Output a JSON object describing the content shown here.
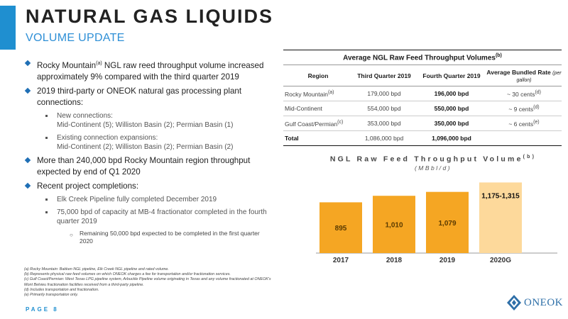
{
  "header": {
    "title": "NATURAL GAS LIQUIDS",
    "subtitle": "VOLUME UPDATE"
  },
  "bullets": {
    "rocky_a": "Rocky Mountain",
    "rocky_sup": "(a)",
    "rocky_b": " NGL raw reed throughput volume increased approximately 9% compared with the third quarter 2019",
    "third_party": "2019 third-party or ONEOK natural gas processing plant connections:",
    "new_connections_label": "New connections:",
    "new_connections_detail": "Mid-Continent (5); Williston Basin (2); Permian Basin (1)",
    "existing_label": "Existing connection expansions:",
    "existing_detail": "Mid-Continent (2); Williston Basin (2); Permian Basin (2)",
    "more_than": "More than 240,000 bpd Rocky Mountain region throughput expected by end of Q1 2020",
    "recent": "Recent project completions:",
    "elk_creek": "Elk Creek Pipeline fully completed December 2019",
    "mb4": "75,000 bpd of capacity at MB-4 fractionator completed in the fourth quarter 2019",
    "remaining": "Remaining 50,000 bpd expected to be completed in the first quarter 2020"
  },
  "table": {
    "title": "Average NGL Raw Feed Throughput Volumes",
    "title_sup": "(b)",
    "headers": {
      "region": "Region",
      "q3": "Third Quarter 2019",
      "q4": "Fourth Quarter 2019",
      "rate": "Average Bundled Rate",
      "rate_unit": "(per gallon)"
    },
    "rows": [
      {
        "region": "Rocky Mountain",
        "sup": "(a)",
        "q3": "179,000 bpd",
        "q4": "196,000 bpd",
        "rate": "~ 30 cents",
        "rate_sup": "(d)"
      },
      {
        "region": "Mid-Continent",
        "sup": "",
        "q3": "554,000 bpd",
        "q4": "550,000 bpd",
        "rate": "~ 9 cents",
        "rate_sup": "(d)"
      },
      {
        "region": "Gulf Coast/Permian",
        "sup": "(c)",
        "q3": "353,000 bpd",
        "q4": "350,000 bpd",
        "rate": "~ 6 cents",
        "rate_sup": "(e)"
      }
    ],
    "total": {
      "region": "Total",
      "q3": "1,086,000 bpd",
      "q4": "1,096,000 bpd"
    }
  },
  "chart_data": {
    "type": "bar",
    "title": "NGL Raw Feed Throughput Volume",
    "title_sup": "(b)",
    "subtitle": "(MBbl/d)",
    "categories": [
      "2017",
      "2018",
      "2019",
      "2020G"
    ],
    "values": [
      895,
      1010,
      1079,
      1245
    ],
    "labels": [
      "895",
      "1,010",
      "1,079",
      "1,175-1,315"
    ],
    "colors": [
      "#f5a623",
      "#f5a623",
      "#f5a623",
      "#fdd99b"
    ]
  },
  "footnotes": [
    "(a) Rocky Mountain: Bakken NGL pipeline, Elk Creek NGL pipeline and rated volume.",
    "(b) Represents physical raw feed volumes on which ONEOK charges a fee for transportation and/or fractionation services.",
    "(c) Gulf Coast/Permian: West Texas LPG pipeline system, Arbuckle Pipeline volume originating in Texas and any volume fractionated at ONEOK's Mont Belvieu fractionation facilities received from a third-party pipeline.",
    "(d) Includes transportation and fractionation.",
    "(e) Primarily transportation only."
  ],
  "footer": {
    "page": "PAGE 8",
    "logo": "ONEOK"
  },
  "colors": {
    "accent": "#1f8fd0",
    "bullet": "#1f6fb5",
    "bar": "#f5a623",
    "bar_light": "#fdd99b"
  }
}
